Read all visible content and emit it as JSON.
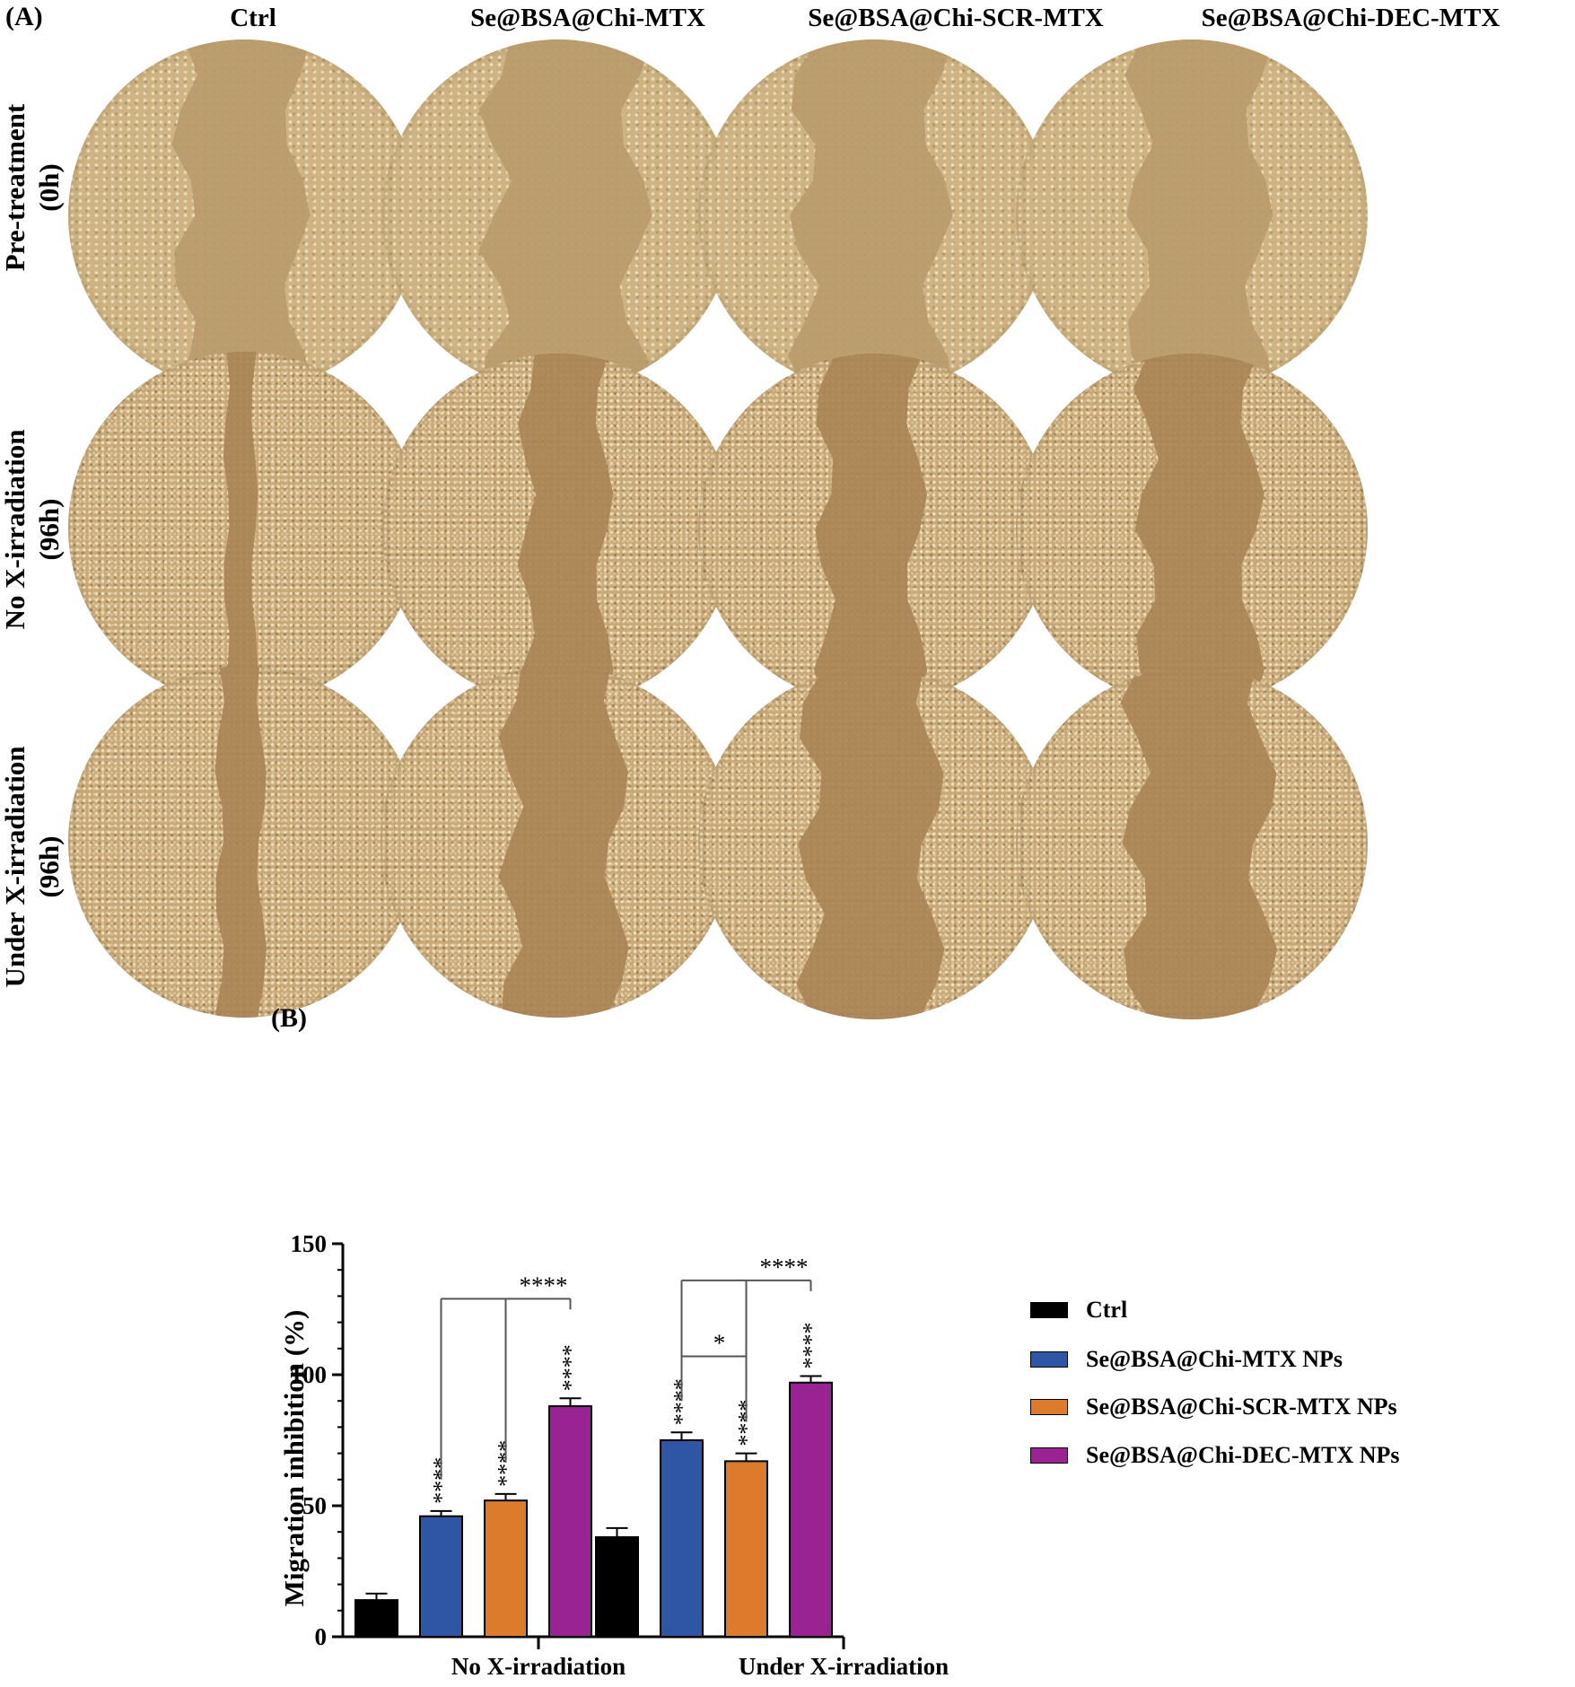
{
  "panel_a": {
    "label": "(A)",
    "columns": [
      "Ctrl",
      "Se@BSA@Chi-MTX",
      "Se@BSA@Chi-SCR-MTX",
      "Se@BSA@Chi-DEC-MTX"
    ],
    "rows": [
      {
        "line1": "Pre-treatment",
        "line2": "(0h)"
      },
      {
        "line1": "No X-irradiation",
        "line2": "(96h)"
      },
      {
        "line1": "Under X-irradiation",
        "line2": "(96h)"
      }
    ],
    "gap_fraction": [
      [
        0.32,
        0.4,
        0.38,
        0.34
      ],
      [
        0.08,
        0.22,
        0.26,
        0.3
      ],
      [
        0.12,
        0.3,
        0.34,
        0.36
      ]
    ]
  },
  "panel_b": {
    "label": "(B)",
    "chart_data": {
      "type": "bar",
      "title": "",
      "xlabel": "",
      "ylabel": "Migration inhibition (%)",
      "ylim": [
        0,
        150
      ],
      "yticks": [
        0,
        50,
        100,
        150
      ],
      "categories": [
        "No X-irradiation",
        "Under X-irradiation"
      ],
      "series": [
        {
          "name": "Ctrl",
          "color": "#000000",
          "values": [
            14,
            38
          ],
          "errors": [
            2.5,
            3.5
          ],
          "marks": [
            "",
            ""
          ]
        },
        {
          "name": "Se@BSA@Chi-MTX NPs",
          "color": "#2e56a5",
          "values": [
            46,
            75
          ],
          "errors": [
            2,
            3
          ],
          "marks": [
            "****",
            "****"
          ]
        },
        {
          "name": "Se@BSA@Chi-SCR-MTX NPs",
          "color": "#dc7b2c",
          "values": [
            52,
            67
          ],
          "errors": [
            2.5,
            3
          ],
          "marks": [
            "****",
            "****"
          ]
        },
        {
          "name": "Se@BSA@Chi-DEC-MTX NPs",
          "color": "#9a2394",
          "values": [
            88,
            97
          ],
          "errors": [
            3,
            2.5
          ],
          "marks": [
            "****",
            "****"
          ]
        }
      ],
      "comparisons": [
        {
          "group": 0,
          "bars": [
            1,
            2,
            3
          ],
          "label": "****",
          "level": 129
        },
        {
          "group": 1,
          "bars": [
            1,
            2
          ],
          "label": "*",
          "level": 107
        },
        {
          "group": 1,
          "bars": [
            1,
            2,
            3
          ],
          "label": "****",
          "level": 136
        }
      ],
      "legend_position": "right"
    }
  }
}
